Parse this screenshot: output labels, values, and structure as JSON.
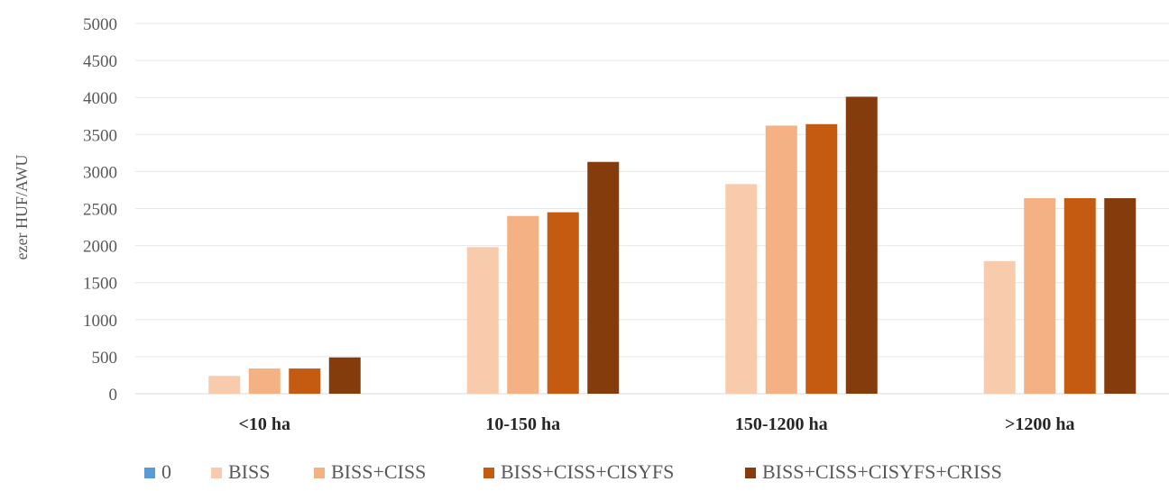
{
  "chart_data": {
    "type": "bar",
    "title": "",
    "xlabel": "",
    "ylabel": "ezer HUF/AWU",
    "ylim": [
      0,
      5000
    ],
    "yticks": [
      0,
      500,
      1000,
      1500,
      2000,
      2500,
      3000,
      3500,
      4000,
      4500,
      5000
    ],
    "grid": true,
    "legend_position": "bottom",
    "categories": [
      "<10 ha",
      "10-150 ha",
      "150-1200 ha",
      ">1200 ha"
    ],
    "series": [
      {
        "name": "0",
        "color": "#5b9bd5",
        "values": [
          0,
          0,
          0,
          0
        ]
      },
      {
        "name": "BISS",
        "color": "#f8cbad",
        "values": [
          240,
          1980,
          2830,
          1790
        ]
      },
      {
        "name": "BISS+CISS",
        "color": "#f4b183",
        "values": [
          340,
          2400,
          3620,
          2640
        ]
      },
      {
        "name": "BISS+CISS+CISYFS",
        "color": "#c55a11",
        "values": [
          340,
          2450,
          3640,
          2640
        ]
      },
      {
        "name": "BISS+CISS+CISYFS+CRISS",
        "color": "#843c0c",
        "values": [
          490,
          3130,
          4010,
          2640
        ]
      }
    ]
  }
}
